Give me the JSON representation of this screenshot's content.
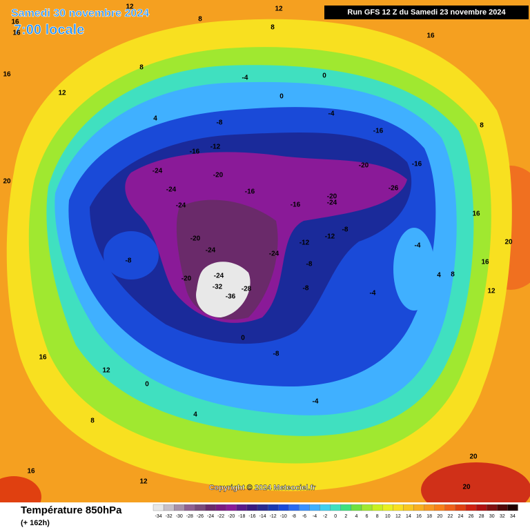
{
  "header": {
    "title": "Samedi 30 novembre 2024",
    "subtitle": "7:00 locale",
    "run": "Run GFS 12 Z du Samedi 23 novembre 2024"
  },
  "map": {
    "copyright": "Copyright © 2024 Meteociel.fr",
    "labels": [
      12,
      16,
      8,
      12,
      16,
      16,
      12,
      8,
      4,
      -4,
      0,
      0,
      -4,
      -8,
      -16,
      -12,
      -24,
      -20,
      -24,
      -24,
      -20,
      -24,
      -16,
      -16,
      -20,
      -24,
      -20,
      -16,
      -16,
      -26,
      -12,
      -8,
      -8,
      -20,
      -24,
      -32,
      -36,
      -28,
      -24,
      -12,
      -8,
      -4,
      -4,
      -8,
      0,
      -4,
      -8,
      4,
      0,
      8,
      12,
      16,
      12,
      16,
      20,
      20,
      20,
      16,
      12,
      8,
      4,
      16,
      8,
      20,
      16,
      8
    ]
  },
  "legend": {
    "title": "Température 850hPa",
    "lead": "(+ 162h)",
    "scale": [
      -34,
      -32,
      -30,
      -28,
      -26,
      -24,
      -22,
      -20,
      -18,
      -16,
      -14,
      -12,
      -10,
      -8,
      -6,
      -4,
      -2,
      0,
      2,
      4,
      6,
      8,
      10,
      12,
      14,
      16,
      18,
      20,
      22,
      24,
      26,
      28,
      30,
      32,
      34
    ],
    "colors": [
      "#e8e8e8",
      "#c8c0c8",
      "#a890a8",
      "#906090",
      "#7a4a7a",
      "#6a2a6a",
      "#7a1a80",
      "#8a1a98",
      "#5a1a8a",
      "#3a1a80",
      "#2a2a90",
      "#1a3ab0",
      "#1a4ad8",
      "#2a6af0",
      "#3a90ff",
      "#40b0ff",
      "#40d0f0",
      "#40e0c0",
      "#40e080",
      "#70e040",
      "#a0e830",
      "#c8f020",
      "#e8f020",
      "#f8e020",
      "#f8c820",
      "#f8b020",
      "#f89820",
      "#f88018",
      "#f06018",
      "#e04010",
      "#d02010",
      "#b01010",
      "#801010",
      "#500808",
      "#200000"
    ]
  }
}
